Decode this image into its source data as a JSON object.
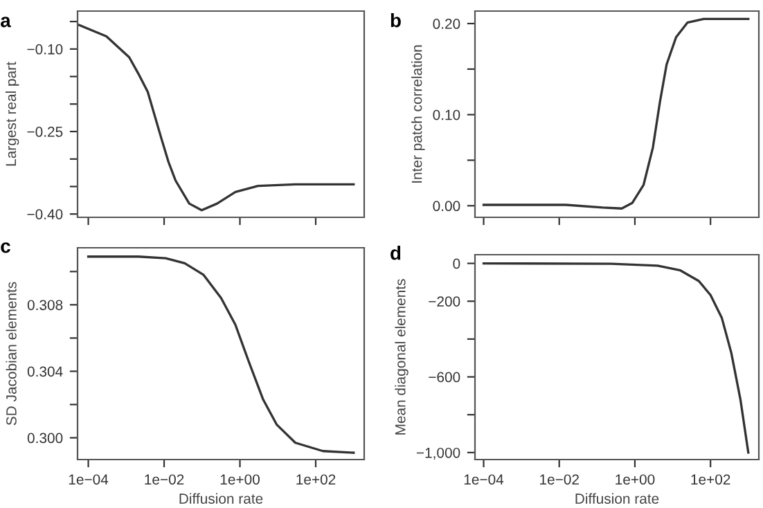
{
  "chart_data": [
    {
      "type": "line",
      "title": "a",
      "ylabel": "Largest real part",
      "log": "x",
      "grid": false,
      "legend": false,
      "tick_labels": "y",
      "xlim": [
        5.2e-05,
        1900
      ],
      "xticks": [
        {
          "value": 0.0001,
          "label": null
        },
        {
          "value": 0.01,
          "label": null
        },
        {
          "value": 1,
          "label": null
        },
        {
          "value": 100,
          "label": null
        }
      ],
      "ylim": [
        -0.406,
        -0.031
      ],
      "yticks": [
        {
          "value": -0.05,
          "label": null
        },
        {
          "value": -0.1,
          "label": "−0.10"
        },
        {
          "value": -0.15,
          "label": null
        },
        {
          "value": -0.2,
          "label": null
        },
        {
          "value": -0.25,
          "label": "−0.25"
        },
        {
          "value": -0.3,
          "label": null
        },
        {
          "value": -0.35,
          "label": null
        },
        {
          "value": -0.4,
          "label": "−0.40"
        }
      ],
      "series": [
        {
          "color": "#333333",
          "x": [
            5.5e-05,
            0.0003,
            0.0012,
            0.0021,
            0.0037,
            0.0085,
            0.013,
            0.02,
            0.046,
            0.098,
            0.25,
            0.76,
            3.0,
            29,
            1000
          ],
          "values": [
            -0.056,
            -0.077,
            -0.115,
            -0.145,
            -0.178,
            -0.263,
            -0.305,
            -0.339,
            -0.381,
            -0.393,
            -0.381,
            -0.36,
            -0.349,
            -0.346,
            -0.346
          ]
        }
      ]
    },
    {
      "type": "line",
      "title": "b",
      "ylabel": "Inter patch correlation",
      "log": "x",
      "grid": false,
      "legend": false,
      "tick_labels": "y",
      "xlim": [
        5.9e-05,
        1900
      ],
      "xticks": [
        {
          "value": 0.0001,
          "label": null
        },
        {
          "value": 0.01,
          "label": null
        },
        {
          "value": 1,
          "label": null
        },
        {
          "value": 100,
          "label": null
        }
      ],
      "ylim": [
        -0.0127,
        0.2137
      ],
      "yticks": [
        {
          "value": 0.0,
          "label": "0.00"
        },
        {
          "value": 0.05,
          "label": null
        },
        {
          "value": 0.1,
          "label": "0.10"
        },
        {
          "value": 0.15,
          "label": null
        },
        {
          "value": 0.2,
          "label": "0.20"
        }
      ],
      "series": [
        {
          "color": "#333333",
          "x": [
            0.0001,
            0.015,
            0.14,
            0.45,
            0.85,
            1.7,
            3.0,
            4.6,
            6.9,
            12.3,
            24.5,
            66,
            1000
          ],
          "values": [
            0.001,
            0.001,
            -0.002,
            -0.003,
            0.003,
            0.023,
            0.064,
            0.114,
            0.155,
            0.185,
            0.201,
            0.205,
            0.205
          ]
        }
      ]
    },
    {
      "type": "line",
      "title": "c",
      "ylabel": "SD Jacobian elements",
      "xlabel": "Diffusion rate",
      "log": "x",
      "grid": false,
      "legend": false,
      "xlim": [
        5.2e-05,
        1900
      ],
      "xticks": [
        {
          "value": 0.0001,
          "label": "1e−04"
        },
        {
          "value": 0.01,
          "label": "1e−02"
        },
        {
          "value": 1,
          "label": "1e+00"
        },
        {
          "value": 100,
          "label": "1e+02"
        }
      ],
      "ylim": [
        0.29869,
        0.31143
      ],
      "yticks": [
        {
          "value": 0.3,
          "label": "0.300"
        },
        {
          "value": 0.302,
          "label": null
        },
        {
          "value": 0.304,
          "label": "0.304"
        },
        {
          "value": 0.306,
          "label": null
        },
        {
          "value": 0.308,
          "label": "0.308"
        },
        {
          "value": 0.31,
          "label": null
        }
      ],
      "series": [
        {
          "color": "#333333",
          "x": [
            0.0001,
            0.0021,
            0.011,
            0.035,
            0.11,
            0.32,
            0.76,
            1.7,
            4.1,
            9.3,
            29,
            155,
            1000
          ],
          "values": [
            0.3109,
            0.3109,
            0.3108,
            0.3105,
            0.3098,
            0.3084,
            0.3068,
            0.3046,
            0.3023,
            0.3008,
            0.2997,
            0.2992,
            0.2991
          ]
        }
      ]
    },
    {
      "type": "line",
      "title": "d",
      "ylabel": "Mean diagonal elements",
      "xlabel": "Diffusion rate",
      "log": "x",
      "grid": false,
      "legend": false,
      "xlim": [
        5.9e-05,
        1900
      ],
      "xticks": [
        {
          "value": 0.0001,
          "label": "1e−04"
        },
        {
          "value": 0.01,
          "label": "1e−02"
        },
        {
          "value": 1,
          "label": "1e+00"
        },
        {
          "value": 100,
          "label": "1e+02"
        }
      ],
      "ylim": [
        -1037,
        46
      ],
      "yticks": [
        {
          "value": -1000,
          "label": "−1,000"
        },
        {
          "value": -800,
          "label": null
        },
        {
          "value": -600,
          "label": "−600"
        },
        {
          "value": -400,
          "label": null
        },
        {
          "value": -200,
          "label": "−200"
        },
        {
          "value": 0,
          "label": "0"
        }
      ],
      "series": [
        {
          "color": "#333333",
          "x": [
            0.0001,
            0.24,
            4.0,
            16,
            49,
            100,
            200,
            355,
            617,
            1000
          ],
          "values": [
            0,
            -2,
            -12,
            -37,
            -93,
            -167,
            -289,
            -473,
            -718,
            -1000
          ]
        }
      ]
    }
  ]
}
